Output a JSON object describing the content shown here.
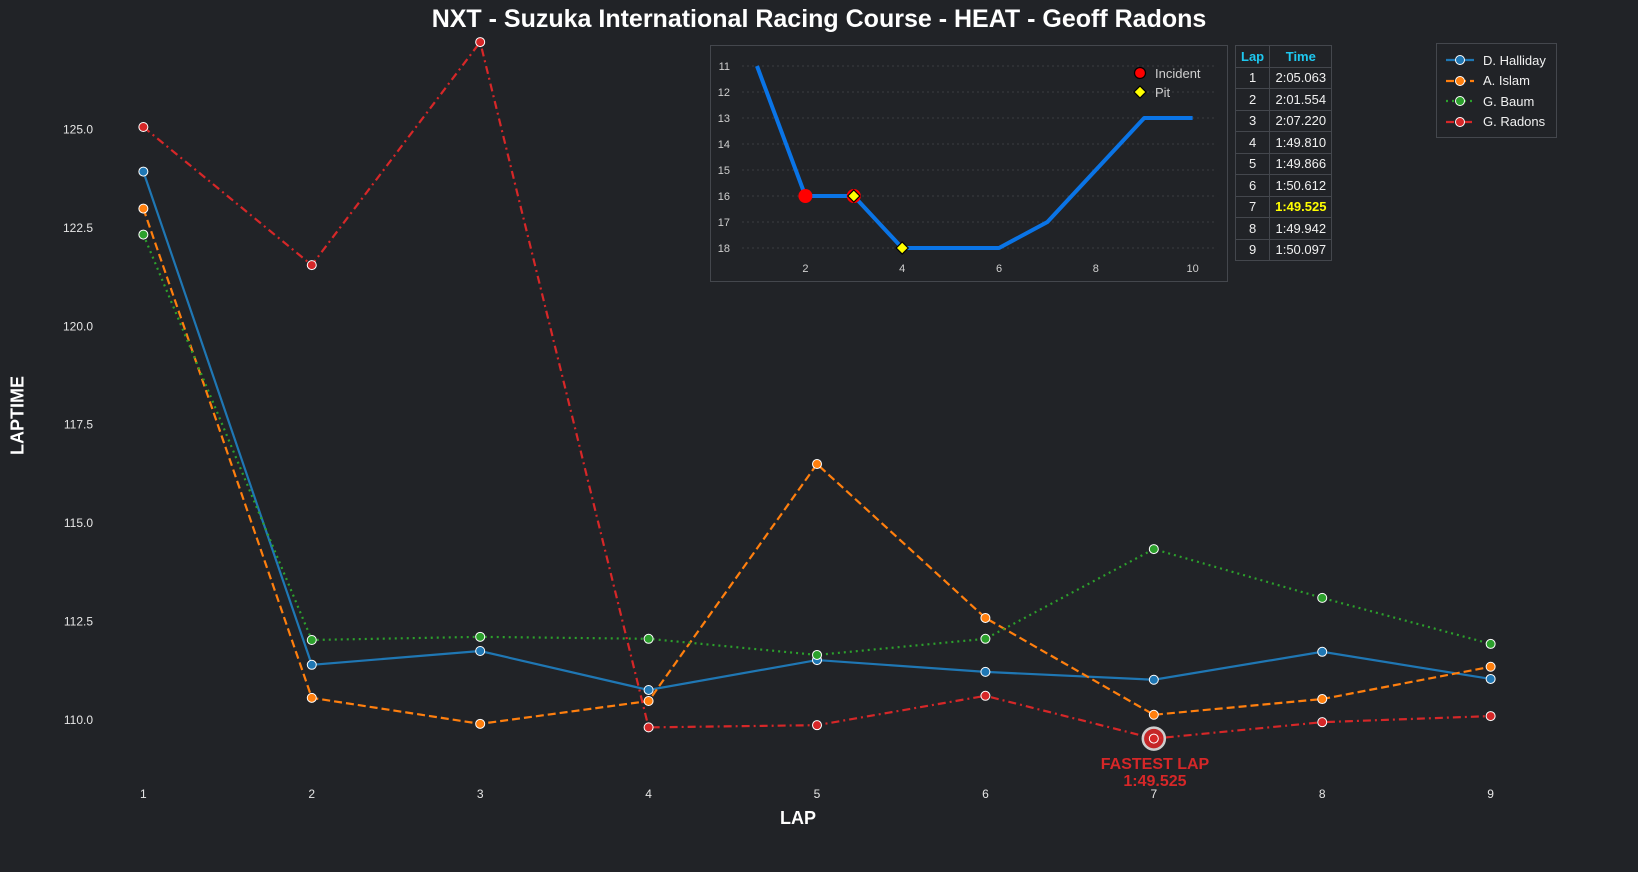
{
  "chart_data": [
    {
      "type": "line",
      "title": "NXT - Suzuka International Racing Course - HEAT - Geoff Radons",
      "xlabel": "LAP",
      "ylabel": "LAPTIME",
      "x": [
        1,
        2,
        3,
        4,
        5,
        6,
        7,
        8,
        9
      ],
      "xlim": [
        0.6,
        9.4
      ],
      "ylim": [
        108.6,
        127.4
      ],
      "yticks": [
        "110.0",
        "112.5",
        "115.0",
        "117.5",
        "120.0",
        "122.5",
        "125.0"
      ],
      "ytick_values": [
        110,
        112.5,
        115,
        117.5,
        120,
        122.5,
        125
      ],
      "legend_position": "top-right",
      "series": [
        {
          "name": "D. Halliday",
          "color": "#1f77b4",
          "dash": "solid",
          "values": [
            123.93,
            111.4,
            111.75,
            110.76,
            111.52,
            111.22,
            111.02,
            111.73,
            111.04
          ]
        },
        {
          "name": "A. Islam",
          "color": "#ff7f0e",
          "dash": "dashed",
          "values": [
            122.99,
            110.56,
            109.9,
            110.48,
            116.5,
            112.59,
            110.13,
            110.53,
            111.35
          ]
        },
        {
          "name": "G. Baum",
          "color": "#2ca02c",
          "dash": "dotted",
          "values": [
            122.33,
            112.03,
            112.11,
            112.06,
            111.65,
            112.06,
            114.34,
            113.1,
            111.93
          ]
        },
        {
          "name": "G. Radons",
          "color": "#d62728",
          "dash": "dashdot",
          "values": [
            125.063,
            121.554,
            127.22,
            109.81,
            109.866,
            110.612,
            109.525,
            109.942,
            110.097
          ]
        }
      ],
      "annotation": {
        "line1": "FASTEST LAP",
        "line2": "1:49.525",
        "lap": 7,
        "value": 109.525
      }
    },
    {
      "type": "line",
      "title": "",
      "x": [
        1,
        2,
        3,
        4,
        5,
        6,
        7,
        8,
        9,
        10
      ],
      "values": [
        11,
        16,
        16,
        18,
        18,
        18,
        17,
        15,
        13,
        13
      ],
      "xticks": [
        2,
        4,
        6,
        8,
        10
      ],
      "yticks": [
        11,
        12,
        13,
        14,
        15,
        16,
        17,
        18
      ],
      "ylim_inverted": [
        11,
        18
      ],
      "color": "#0a74e6",
      "incidents": [
        {
          "lap": 2,
          "pos": 16
        },
        {
          "lap": 3,
          "pos": 16
        }
      ],
      "pits": [
        {
          "lap": 3,
          "pos": 16
        },
        {
          "lap": 4,
          "pos": 18
        }
      ],
      "legend": [
        "Incident",
        "Pit"
      ]
    }
  ],
  "lap_table": {
    "headers": [
      "Lap",
      "Time"
    ],
    "rows": [
      [
        "1",
        "2:05.063"
      ],
      [
        "2",
        "2:01.554"
      ],
      [
        "3",
        "2:07.220"
      ],
      [
        "4",
        "1:49.810"
      ],
      [
        "5",
        "1:49.866"
      ],
      [
        "6",
        "1:50.612"
      ],
      [
        "7",
        "1:49.525"
      ],
      [
        "8",
        "1:49.942"
      ],
      [
        "9",
        "1:50.097"
      ]
    ],
    "best_row": 6,
    "best_color": "#ffff00"
  }
}
